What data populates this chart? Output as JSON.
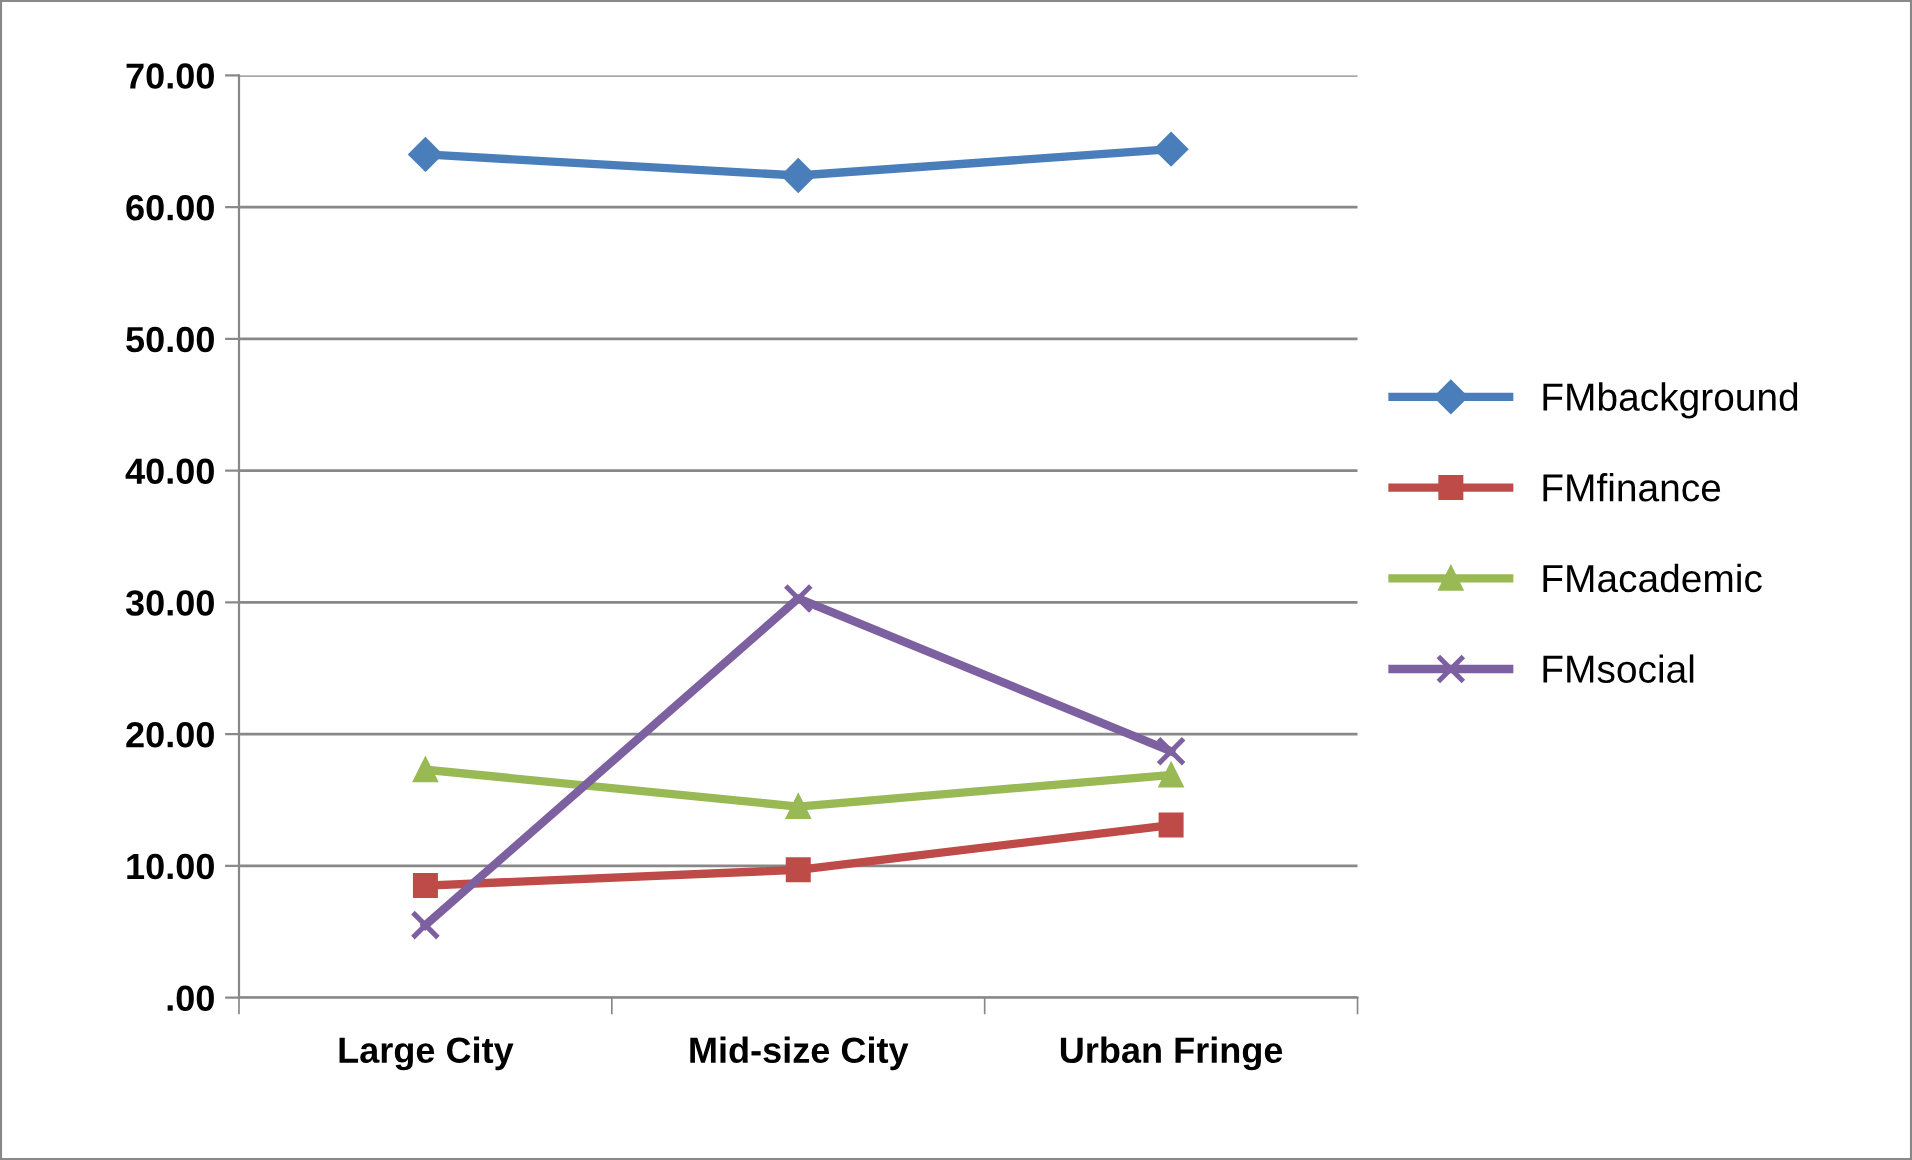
{
  "chart_data": {
    "type": "line",
    "categories": [
      "Large City",
      "Mid-size City",
      "Urban Fringe"
    ],
    "series": [
      {
        "name": "FMbackground",
        "color": "#4a7ebb",
        "marker": "diamond",
        "values": [
          64.0,
          62.4,
          64.4
        ]
      },
      {
        "name": "FMfinance",
        "color": "#be4b48",
        "marker": "square",
        "values": [
          8.5,
          9.7,
          13.1
        ]
      },
      {
        "name": "FMacademic",
        "color": "#98b954",
        "marker": "triangle",
        "values": [
          17.3,
          14.5,
          16.9
        ]
      },
      {
        "name": "FMsocial",
        "color": "#7d60a0",
        "marker": "cross",
        "values": [
          5.5,
          30.3,
          18.7
        ]
      }
    ],
    "ylim": [
      0,
      70
    ],
    "yticks": [
      {
        "value": 0,
        "label": ".00"
      },
      {
        "value": 10,
        "label": "10.00"
      },
      {
        "value": 20,
        "label": "20.00"
      },
      {
        "value": 30,
        "label": "30.00"
      },
      {
        "value": 40,
        "label": "40.00"
      },
      {
        "value": 50,
        "label": "50.00"
      },
      {
        "value": 60,
        "label": "60.00"
      },
      {
        "value": 70,
        "label": "70.00"
      }
    ],
    "grid": "y",
    "legend": "right",
    "line_style": "solid"
  }
}
